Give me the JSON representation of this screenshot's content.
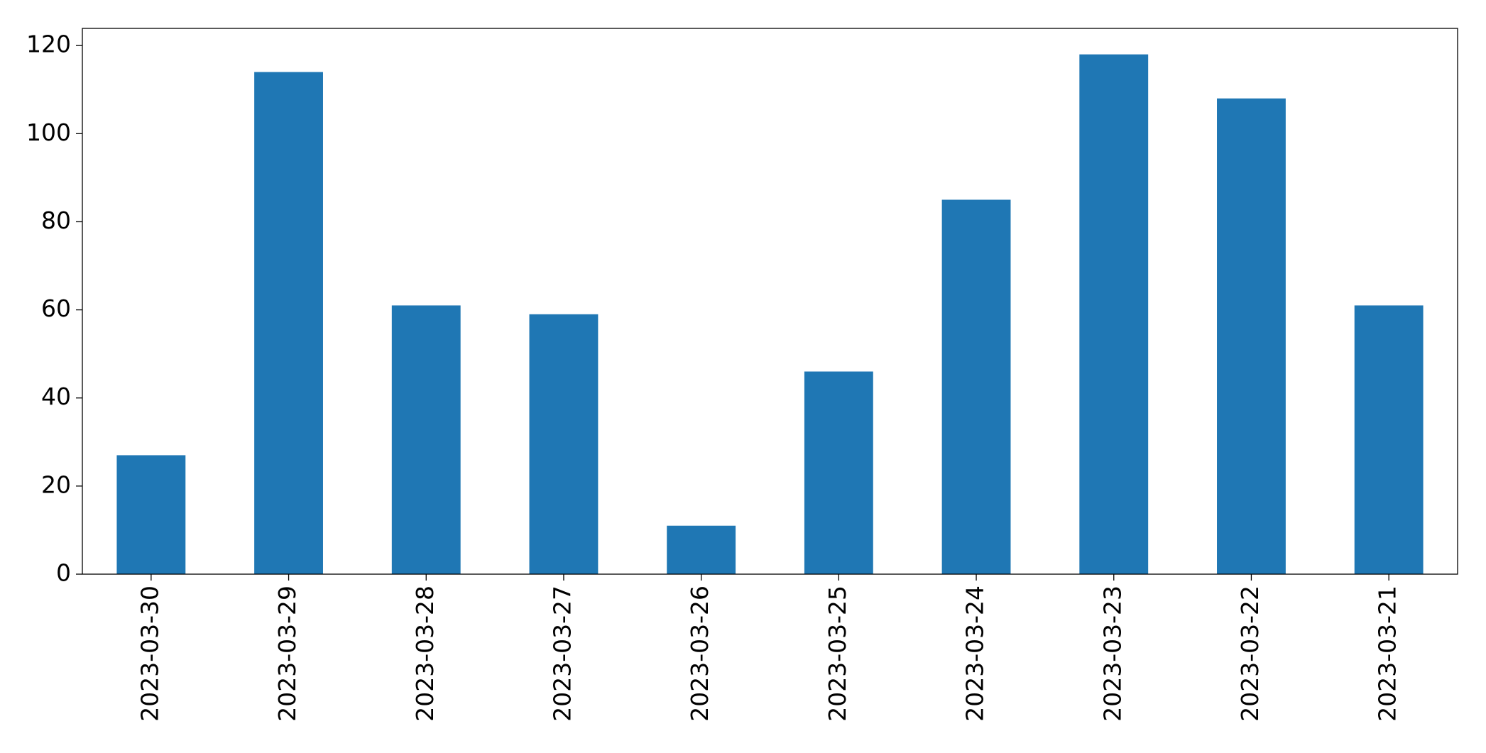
{
  "chart_data": {
    "type": "bar",
    "categories": [
      "2023-03-30",
      "2023-03-29",
      "2023-03-28",
      "2023-03-27",
      "2023-03-26",
      "2023-03-25",
      "2023-03-24",
      "2023-03-23",
      "2023-03-22",
      "2023-03-21"
    ],
    "values": [
      27,
      114,
      61,
      59,
      11,
      46,
      85,
      118,
      108,
      61
    ],
    "color": "#1f77b4",
    "ylim": [
      0,
      123.9
    ],
    "yticks": [
      0,
      20,
      40,
      60,
      80,
      100,
      120
    ],
    "grid": false
  }
}
